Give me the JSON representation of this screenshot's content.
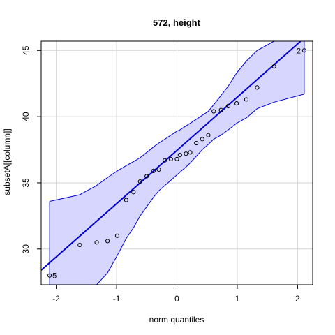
{
  "chart_data": {
    "type": "scatter",
    "title": "572, height",
    "xlabel": "norm quantiles",
    "ylabel": "subsetA[[column]]",
    "xlim": [
      -2.25,
      2.25
    ],
    "ylim": [
      27.3,
      45.7
    ],
    "x_ticks": [
      -2,
      -1,
      0,
      1,
      2
    ],
    "y_ticks": [
      30,
      35,
      40,
      45
    ],
    "grid": true,
    "colors": {
      "points": "#000000",
      "reference_line": "#0000cd",
      "envelope_fill": "#d6d6ff",
      "envelope_border": "#0000cd",
      "grid": "#d3d3d3"
    },
    "points": [
      {
        "x": -2.11,
        "y": 28.0
      },
      {
        "x": -1.61,
        "y": 30.3
      },
      {
        "x": -1.33,
        "y": 30.5
      },
      {
        "x": -1.15,
        "y": 30.6
      },
      {
        "x": -0.99,
        "y": 31.0
      },
      {
        "x": -0.84,
        "y": 33.7
      },
      {
        "x": -0.72,
        "y": 34.3
      },
      {
        "x": -0.61,
        "y": 35.1
      },
      {
        "x": -0.5,
        "y": 35.5
      },
      {
        "x": -0.39,
        "y": 35.9
      },
      {
        "x": -0.3,
        "y": 36.0
      },
      {
        "x": -0.2,
        "y": 36.7
      },
      {
        "x": -0.1,
        "y": 36.8
      },
      {
        "x": 0.0,
        "y": 36.8
      },
      {
        "x": 0.05,
        "y": 37.1
      },
      {
        "x": 0.15,
        "y": 37.2
      },
      {
        "x": 0.22,
        "y": 37.3
      },
      {
        "x": 0.32,
        "y": 38.0
      },
      {
        "x": 0.42,
        "y": 38.3
      },
      {
        "x": 0.52,
        "y": 38.6
      },
      {
        "x": 0.61,
        "y": 40.4
      },
      {
        "x": 0.73,
        "y": 40.5
      },
      {
        "x": 0.85,
        "y": 40.8
      },
      {
        "x": 0.99,
        "y": 41.0
      },
      {
        "x": 1.15,
        "y": 41.3
      },
      {
        "x": 1.33,
        "y": 42.2
      },
      {
        "x": 1.61,
        "y": 43.8
      },
      {
        "x": 2.11,
        "y": 45.0
      }
    ],
    "point_labels": [
      {
        "text": "5",
        "x": -2.11,
        "y": 28.0
      },
      {
        "text": "2",
        "x": 2.11,
        "y": 45.0
      }
    ],
    "reference_line": {
      "x": [
        -2.25,
        2.25
      ],
      "y": [
        28.4,
        46.5
      ]
    },
    "envelope": {
      "x": [
        -2.11,
        -1.61,
        -1.33,
        -1.15,
        -0.99,
        -0.84,
        -0.72,
        -0.61,
        -0.5,
        -0.39,
        -0.3,
        -0.2,
        -0.1,
        0.0,
        0.05,
        0.15,
        0.22,
        0.32,
        0.42,
        0.52,
        0.61,
        0.73,
        0.85,
        0.99,
        1.15,
        1.33,
        1.61,
        2.11
      ],
      "upper": [
        33.6,
        34.1,
        34.8,
        35.4,
        35.9,
        36.3,
        36.6,
        36.9,
        37.3,
        37.7,
        38.0,
        38.3,
        38.6,
        38.9,
        39.0,
        39.3,
        39.5,
        39.8,
        40.1,
        40.4,
        40.9,
        41.6,
        42.3,
        43.3,
        44.2,
        45.0,
        45.7,
        45.7
      ],
      "lower": [
        27.3,
        27.3,
        27.3,
        28.2,
        29.5,
        30.8,
        31.6,
        32.5,
        33.2,
        33.9,
        34.4,
        34.8,
        35.2,
        35.6,
        35.8,
        36.2,
        36.5,
        37.0,
        37.5,
        37.9,
        38.3,
        38.6,
        39.0,
        39.5,
        39.9,
        40.6,
        41.1,
        41.7
      ]
    }
  }
}
